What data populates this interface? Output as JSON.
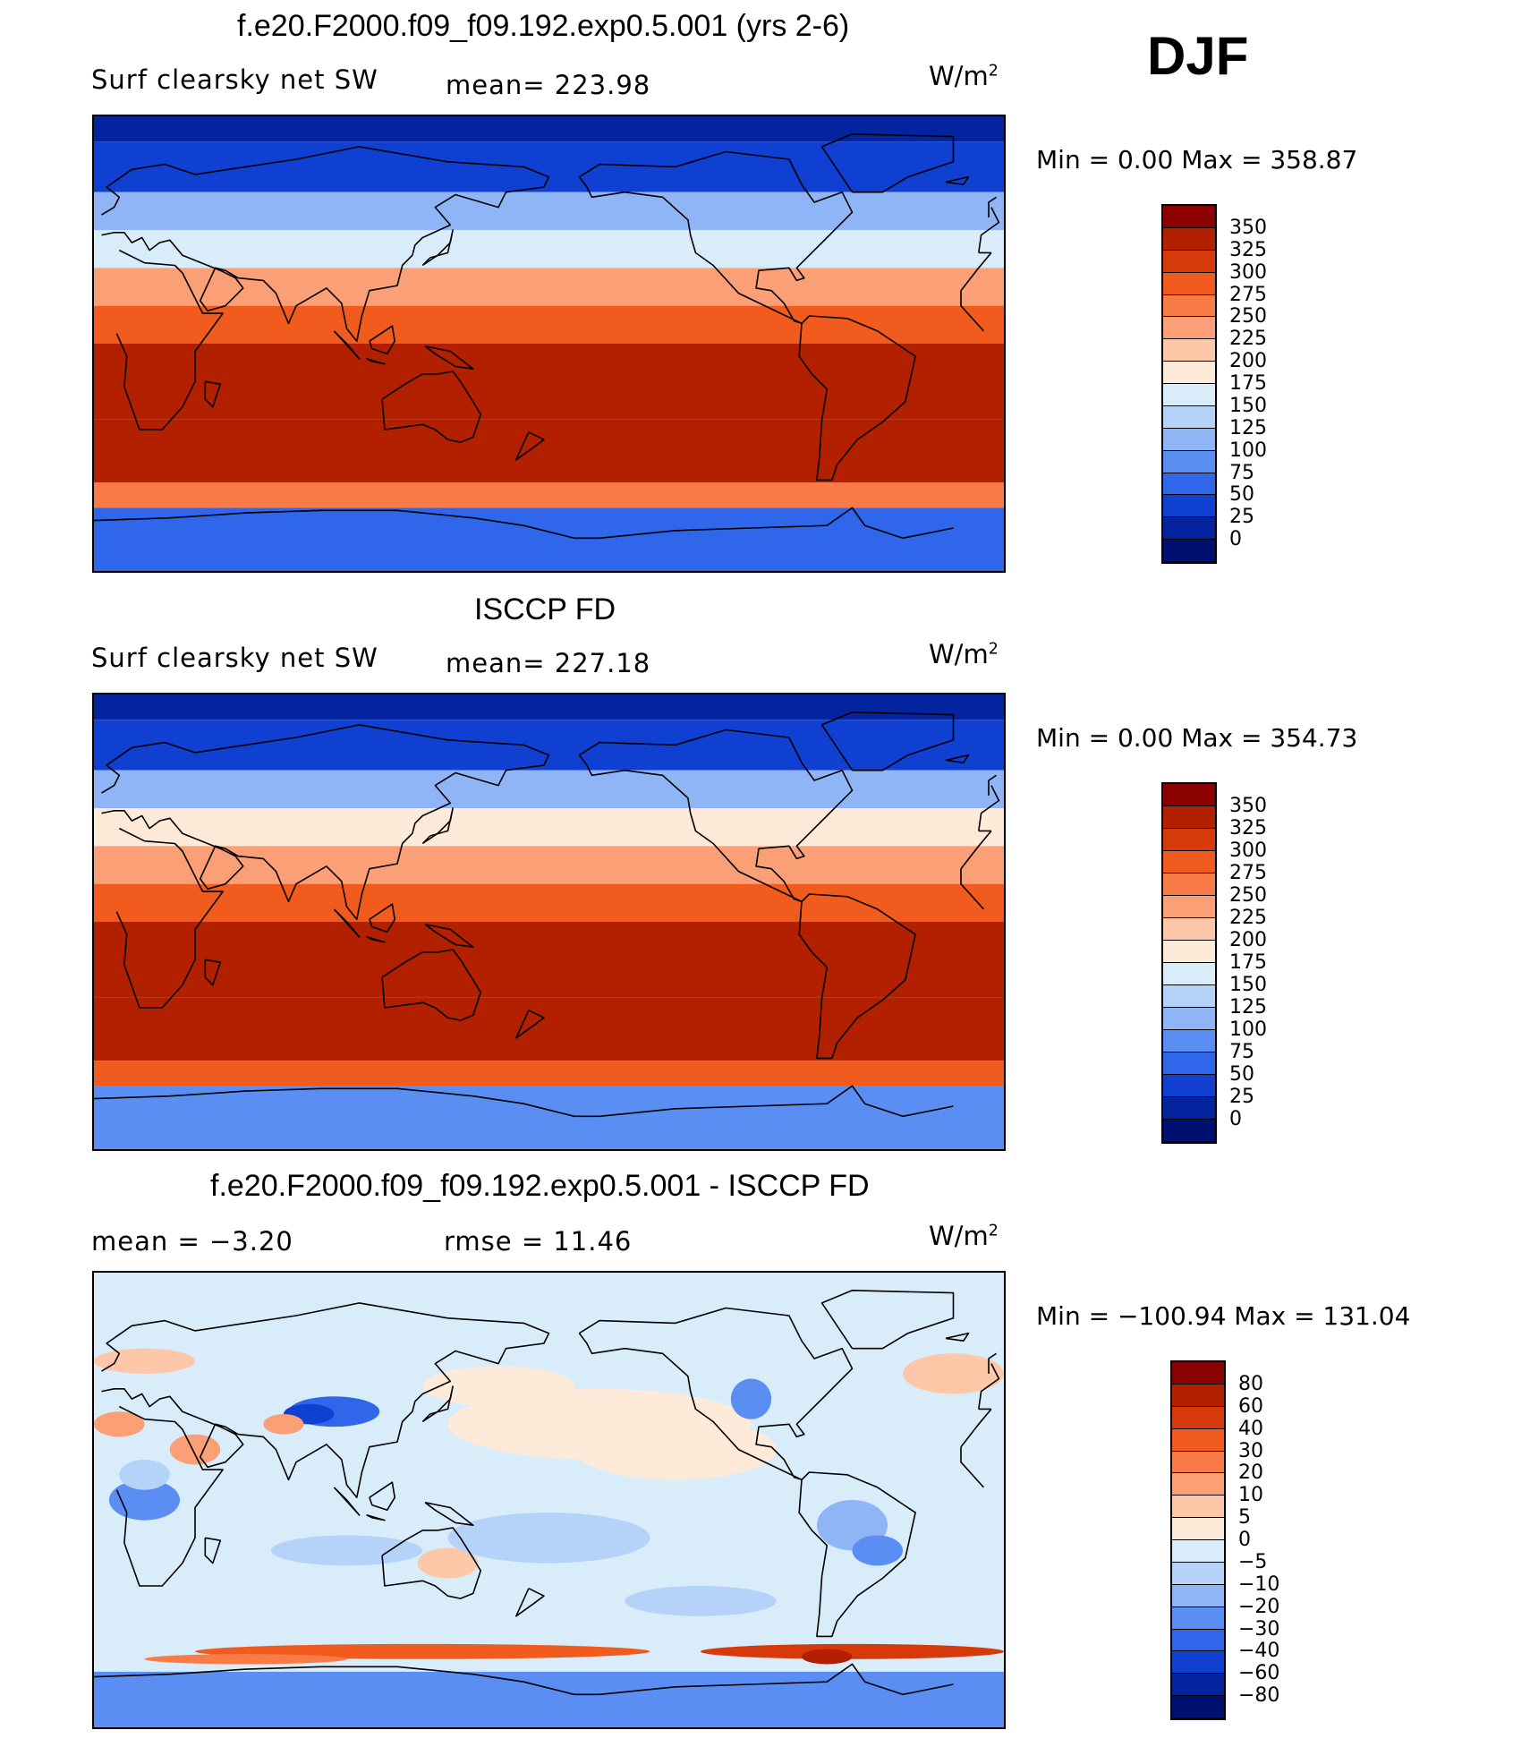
{
  "season": "DJF",
  "units_base": "W/m",
  "units_exp": "2",
  "panels": [
    {
      "title": "f.e20.F2000.f09_f09.192.exp0.5.001 (yrs 2-6)",
      "left_label": "Surf clearsky net SW",
      "center_label": "mean=  223.98",
      "minmax": "Min =     0.00  Max  =  358.87",
      "colorbar": {
        "labels": [
          "350",
          "325",
          "300",
          "275",
          "250",
          "225",
          "200",
          "175",
          "150",
          "125",
          "100",
          "75",
          "50",
          "25",
          "0"
        ],
        "colors": [
          "#8b0000",
          "#b22000",
          "#d63a0a",
          "#f15b1e",
          "#f97b47",
          "#fb9f76",
          "#fdc7a8",
          "#feead8",
          "#d9ecfa",
          "#b5d3f8",
          "#8fb5f6",
          "#5a8ef2",
          "#2f66ea",
          "#0f40d2",
          "#04239e",
          "#001070"
        ]
      }
    },
    {
      "title": "ISCCP FD",
      "left_label": "Surf clearsky net SW",
      "center_label": "mean=  227.18",
      "minmax": "Min =     0.00  Max  =  354.73",
      "colorbar": {
        "labels": [
          "350",
          "325",
          "300",
          "275",
          "250",
          "225",
          "200",
          "175",
          "150",
          "125",
          "100",
          "75",
          "50",
          "25",
          "0"
        ],
        "colors": [
          "#8b0000",
          "#b22000",
          "#d63a0a",
          "#f15b1e",
          "#f97b47",
          "#fb9f76",
          "#fdc7a8",
          "#feead8",
          "#d9ecfa",
          "#b5d3f8",
          "#8fb5f6",
          "#5a8ef2",
          "#2f66ea",
          "#0f40d2",
          "#04239e",
          "#001070"
        ]
      }
    },
    {
      "title": "f.e20.F2000.f09_f09.192.exp0.5.001 - ISCCP FD",
      "left_label": "mean  =    −3.20",
      "center_label": "rmse  =    11.46",
      "minmax": "Min  = −100.94  Max  =  131.04",
      "colorbar": {
        "labels": [
          "80",
          "60",
          "40",
          "30",
          "20",
          "10",
          "5",
          "0",
          "−5",
          "−10",
          "−20",
          "−30",
          "−40",
          "−60",
          "−80"
        ],
        "colors": [
          "#8b0000",
          "#b22000",
          "#d63a0a",
          "#f15b1e",
          "#f97b47",
          "#fb9f76",
          "#fdc7a8",
          "#feead8",
          "#d9ecfa",
          "#b5d3f8",
          "#8fb5f6",
          "#5a8ef2",
          "#2f66ea",
          "#0f40d2",
          "#04239e",
          "#001070"
        ]
      }
    }
  ],
  "chart_data": [
    {
      "type": "heatmap",
      "title": "f.e20.F2000.f09_f09.192.exp0.5.001 (yrs 2-6)",
      "variable": "Surf clearsky net SW",
      "units": "W/m2",
      "mean": 223.98,
      "min": 0.0,
      "max": 358.87,
      "contour_levels": [
        0,
        25,
        50,
        75,
        100,
        125,
        150,
        175,
        200,
        225,
        250,
        275,
        300,
        325,
        350
      ],
      "zonal_bands_from_north": [
        {
          "lat_band": "80N-90N",
          "value": 10
        },
        {
          "lat_band": "60N-80N",
          "value": 40
        },
        {
          "lat_band": "45N-60N",
          "value": 110
        },
        {
          "lat_band": "30N-45N",
          "value": 170
        },
        {
          "lat_band": "15N-30N",
          "value": 240
        },
        {
          "lat_band": "0-15N",
          "value": 290
        },
        {
          "lat_band": "0-30S",
          "value": 325
        },
        {
          "lat_band": "30S-55S",
          "value": 330
        },
        {
          "lat_band": "55S-65S",
          "value": 270
        },
        {
          "lat_band": "65S-90S",
          "value": 60
        }
      ]
    },
    {
      "type": "heatmap",
      "title": "ISCCP FD",
      "variable": "Surf clearsky net SW",
      "units": "W/m2",
      "mean": 227.18,
      "min": 0.0,
      "max": 354.73,
      "contour_levels": [
        0,
        25,
        50,
        75,
        100,
        125,
        150,
        175,
        200,
        225,
        250,
        275,
        300,
        325,
        350
      ],
      "zonal_bands_from_north": [
        {
          "lat_band": "80N-90N",
          "value": 10
        },
        {
          "lat_band": "60N-80N",
          "value": 40
        },
        {
          "lat_band": "45N-60N",
          "value": 115
        },
        {
          "lat_band": "30N-45N",
          "value": 175
        },
        {
          "lat_band": "15N-30N",
          "value": 245
        },
        {
          "lat_band": "0-15N",
          "value": 295
        },
        {
          "lat_band": "0-30S",
          "value": 330
        },
        {
          "lat_band": "30S-55S",
          "value": 330
        },
        {
          "lat_band": "55S-65S",
          "value": 275
        },
        {
          "lat_band": "65S-90S",
          "value": 80
        }
      ]
    },
    {
      "type": "heatmap",
      "title": "f.e20.F2000.f09_f09.192.exp0.5.001 - ISCCP FD",
      "variable": "Surf clearsky net SW difference",
      "units": "W/m2",
      "mean": -3.2,
      "rmse": 11.46,
      "min": -100.94,
      "max": 131.04,
      "contour_levels": [
        -80,
        -60,
        -40,
        -30,
        -20,
        -10,
        -5,
        0,
        5,
        10,
        20,
        30,
        40,
        60,
        80
      ]
    }
  ]
}
